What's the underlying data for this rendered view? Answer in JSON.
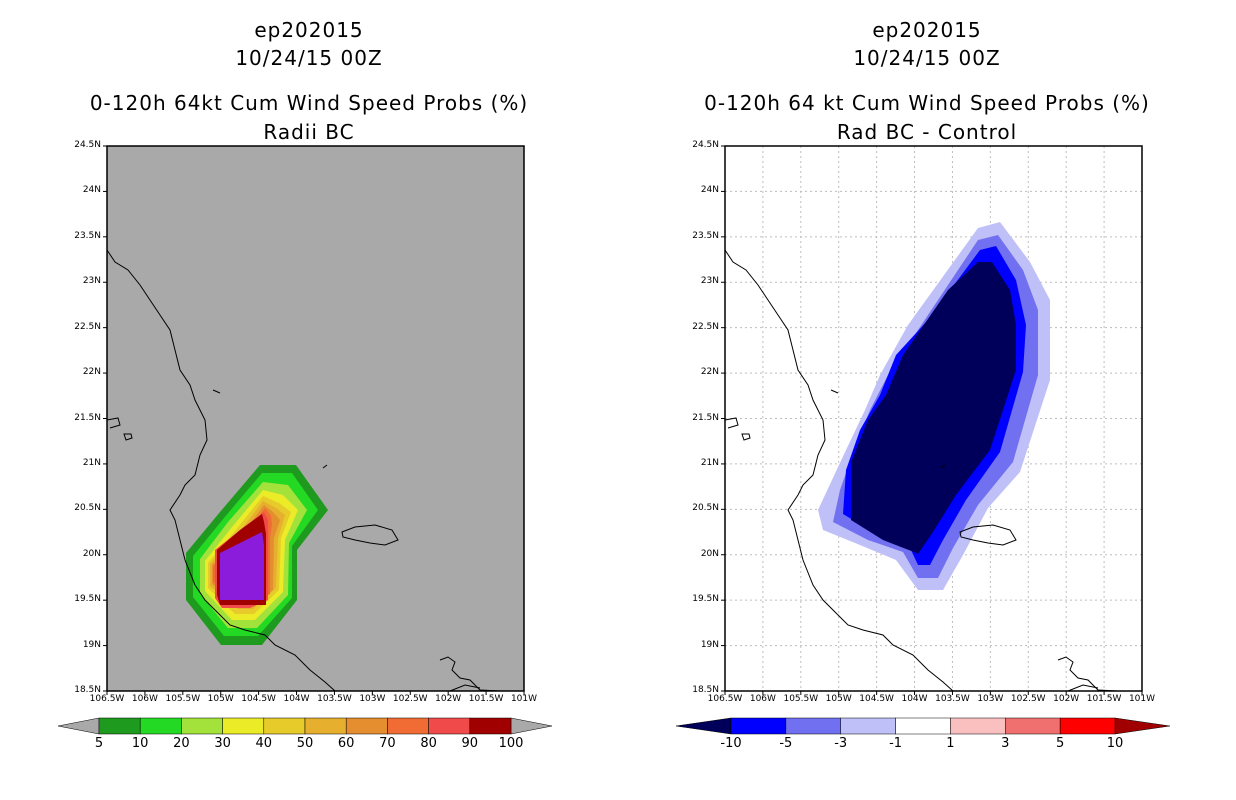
{
  "left": {
    "header": {
      "storm_id": "ep202015",
      "datetime": "10/24/15 00Z",
      "product": "0-120h 64kt Cum Wind Speed Probs (%)",
      "subtitle": "Radii BC"
    },
    "colorbar": {
      "labels": [
        "5",
        "10",
        "20",
        "30",
        "40",
        "50",
        "60",
        "70",
        "80",
        "90",
        "100"
      ],
      "colors": [
        "#1e9a1e",
        "#23d923",
        "#a3e23b",
        "#ebeb27",
        "#e6cb2a",
        "#e6af2e",
        "#e58e2f",
        "#f06c34",
        "#f04a4a",
        "#a00000",
        "#8b1cdc"
      ]
    }
  },
  "right": {
    "header": {
      "storm_id": "ep202015",
      "datetime": "10/24/15 00Z",
      "product": "0-120h 64 kt Cum Wind Speed Probs (%)",
      "subtitle": "Rad BC - Control"
    },
    "colorbar": {
      "labels": [
        "-10",
        "-5",
        "-3",
        "-1",
        "1",
        "3",
        "5",
        "10"
      ],
      "colors": [
        "#00005a",
        "#0000ff",
        "#7070f0",
        "#c0c0f8",
        "#ffffff",
        "#fac0c0",
        "#f07070",
        "#ff0000",
        "#a00000"
      ]
    }
  },
  "axes": {
    "lat_labels": [
      "24.5N",
      "24N",
      "23.5N",
      "23N",
      "22.5N",
      "22N",
      "21.5N",
      "21N",
      "20.5N",
      "20N",
      "19.5N",
      "19N",
      "18.5N"
    ],
    "lon_labels": [
      "106.5W",
      "106W",
      "105.5W",
      "105W",
      "104.5W",
      "104W",
      "103.5W",
      "103W",
      "102.5W",
      "102W",
      "101.5W",
      "101W"
    ]
  },
  "colors": {
    "land_ocean_fill": "#a9a9a9",
    "coastline": "#000000",
    "grid": "#bdbdbd"
  }
}
